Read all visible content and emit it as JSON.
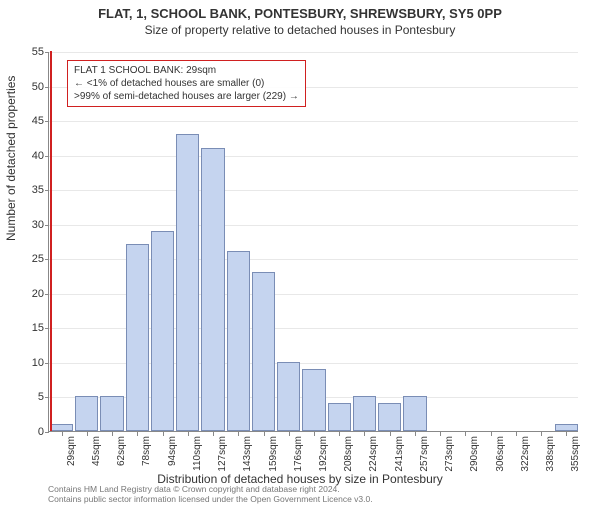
{
  "title_main": "FLAT, 1, SCHOOL BANK, PONTESBURY, SHREWSBURY, SY5 0PP",
  "title_sub": "Size of property relative to detached houses in Pontesbury",
  "ylabel": "Number of detached properties",
  "xlabel": "Distribution of detached houses by size in Pontesbury",
  "chart": {
    "type": "histogram",
    "ylim": [
      0,
      55
    ],
    "ytick_step": 5,
    "bar_fill": "#c5d4ef",
    "bar_border": "#7a8db5",
    "grid_color": "#e8e8e8",
    "highlight_color": "#d02020",
    "highlight_x": 29,
    "x_categories": [
      "29sqm",
      "45sqm",
      "62sqm",
      "78sqm",
      "94sqm",
      "110sqm",
      "127sqm",
      "143sqm",
      "159sqm",
      "176sqm",
      "192sqm",
      "208sqm",
      "224sqm",
      "241sqm",
      "257sqm",
      "273sqm",
      "290sqm",
      "306sqm",
      "322sqm",
      "338sqm",
      "355sqm"
    ],
    "bars": [
      1,
      5,
      5,
      27,
      29,
      43,
      41,
      26,
      23,
      10,
      9,
      4,
      5,
      4,
      5,
      0,
      0,
      0,
      0,
      0,
      1
    ]
  },
  "annotation": {
    "line1": "FLAT 1 SCHOOL BANK: 29sqm",
    "line2": "← <1% of detached houses are smaller (0)",
    "line3": ">99% of semi-detached houses are larger (229) →"
  },
  "footer1": "Contains HM Land Registry data © Crown copyright and database right 2024.",
  "footer2": "Contains public sector information licensed under the Open Government Licence v3.0."
}
